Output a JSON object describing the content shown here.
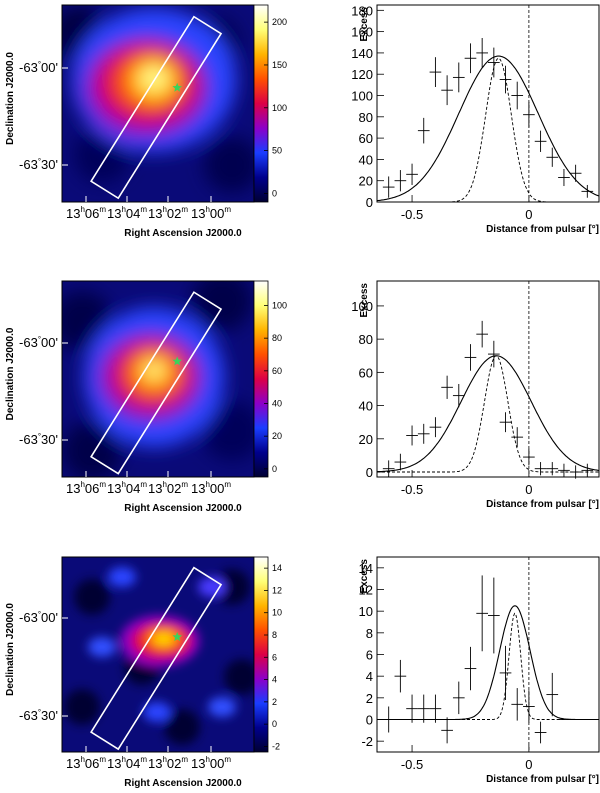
{
  "colors": {
    "map_palette": [
      "#000033",
      "#00008c",
      "#1a3dff",
      "#8c00c8",
      "#dc0046",
      "#ff5000",
      "#ffb400",
      "#ffff78",
      "#ffffff"
    ]
  },
  "sky_axes": {
    "dec_label": "Declination J2000.0",
    "ra_label": "Right Ascension J2000.0",
    "dec_ticks": [
      {
        "deg": "-63",
        "min": "00'"
      },
      {
        "deg": "-63",
        "min": "30'"
      }
    ],
    "ra_ticks": [
      {
        "h": "13",
        "m": "06"
      },
      {
        "h": "13",
        "m": "04"
      },
      {
        "h": "13",
        "m": "02"
      },
      {
        "h": "13",
        "m": "00"
      }
    ],
    "ra_superscript_h": "h",
    "ra_superscript_m": "m",
    "deg_symbol": "°"
  },
  "profile_axes": {
    "ylabel": "Excess",
    "xlabel": "Distance from pulsar [°]",
    "xlim": [
      -0.65,
      0.3
    ],
    "xticks": [
      "-0.5",
      "0"
    ]
  },
  "chart_data": [
    {
      "type": "heatmap",
      "title": "",
      "colorbar": {
        "min": -10,
        "max": 220,
        "ticks": [
          "0",
          "50",
          "100",
          "150",
          "200"
        ]
      },
      "peak": [
        0.48,
        0.37
      ]
    },
    {
      "type": "scatter",
      "title": "",
      "xlabel": "Distance from pulsar [°]",
      "ylabel": "Excess",
      "xlim": [
        -0.65,
        0.3
      ],
      "ylim": [
        0,
        185
      ],
      "yticks": [
        "0",
        "20",
        "40",
        "60",
        "80",
        "100",
        "120",
        "140",
        "160",
        "180"
      ],
      "x": [
        -0.6,
        -0.55,
        -0.5,
        -0.45,
        -0.4,
        -0.35,
        -0.3,
        -0.25,
        -0.2,
        -0.15,
        -0.1,
        -0.05,
        0,
        0.05,
        0.1,
        0.15,
        0.2,
        0.25
      ],
      "y": [
        14,
        20,
        26,
        67,
        122,
        105,
        117,
        135,
        140,
        131,
        115,
        100,
        82,
        57,
        42,
        23,
        27,
        10
      ],
      "yerr": [
        10,
        10,
        10,
        12,
        14,
        14,
        14,
        14,
        14,
        14,
        13,
        13,
        12,
        10,
        9,
        8,
        8,
        6
      ],
      "fit": {
        "amp": 137,
        "mean": -0.13,
        "sigma": 0.17,
        "narrow_amp": 135,
        "narrow_sigma": 0.055
      }
    },
    {
      "type": "heatmap",
      "title": "",
      "colorbar": {
        "min": -5,
        "max": 115,
        "ticks": [
          "0",
          "20",
          "40",
          "60",
          "80",
          "100"
        ]
      },
      "peak": [
        0.48,
        0.45
      ]
    },
    {
      "type": "scatter",
      "title": "",
      "xlabel": "Distance from pulsar [°]",
      "ylabel": "Excess",
      "xlim": [
        -0.65,
        0.3
      ],
      "ylim": [
        -3,
        115
      ],
      "yticks": [
        "0",
        "20",
        "40",
        "60",
        "80",
        "100"
      ],
      "x": [
        -0.6,
        -0.55,
        -0.5,
        -0.45,
        -0.4,
        -0.35,
        -0.3,
        -0.25,
        -0.2,
        -0.15,
        -0.1,
        -0.05,
        0,
        0.05,
        0.1,
        0.15,
        0.2,
        0.25
      ],
      "y": [
        2,
        6,
        22,
        23,
        27,
        51,
        46,
        69,
        83,
        71,
        30,
        21,
        9,
        2,
        2,
        1,
        0,
        1
      ],
      "yerr": [
        5,
        5,
        6,
        6,
        6,
        7,
        7,
        8,
        8,
        8,
        6,
        6,
        5,
        4,
        4,
        4,
        4,
        4
      ],
      "fit": {
        "amp": 70,
        "mean": -0.14,
        "sigma": 0.15,
        "narrow_amp": 70,
        "narrow_sigma": 0.05
      }
    },
    {
      "type": "heatmap",
      "title": "",
      "colorbar": {
        "min": -2.5,
        "max": 15,
        "ticks": [
          "-2",
          "0",
          "2",
          "4",
          "6",
          "8",
          "10",
          "12",
          "14"
        ]
      },
      "peak": [
        0.55,
        0.42
      ]
    },
    {
      "type": "scatter",
      "title": "",
      "xlabel": "Distance from pulsar [°]",
      "ylabel": "Excess",
      "xlim": [
        -0.65,
        0.3
      ],
      "ylim": [
        -3,
        15
      ],
      "yticks": [
        "-2",
        "0",
        "2",
        "4",
        "6",
        "8",
        "10",
        "12",
        "14"
      ],
      "x": [
        -0.6,
        -0.55,
        -0.5,
        -0.45,
        -0.4,
        -0.35,
        -0.3,
        -0.25,
        -0.2,
        -0.15,
        -0.1,
        -0.05,
        0,
        0.05,
        0.1,
        0.15,
        0.2,
        0.25
      ],
      "y": [
        0,
        4,
        1,
        1,
        1,
        -1,
        2,
        4.7,
        9.8,
        9.6,
        4.3,
        1.4,
        1.2,
        -1.2,
        2.3,
        0,
        0,
        0
      ],
      "yerr": [
        1.2,
        1.5,
        1.3,
        1.3,
        1.3,
        1.2,
        1.5,
        2,
        3.5,
        3.5,
        2.5,
        1.5,
        1.5,
        1,
        2,
        0,
        0,
        0
      ],
      "fit": {
        "amp": 10.5,
        "mean": -0.06,
        "sigma": 0.065,
        "narrow_amp": 9.8,
        "narrow_sigma": 0.025
      }
    }
  ]
}
